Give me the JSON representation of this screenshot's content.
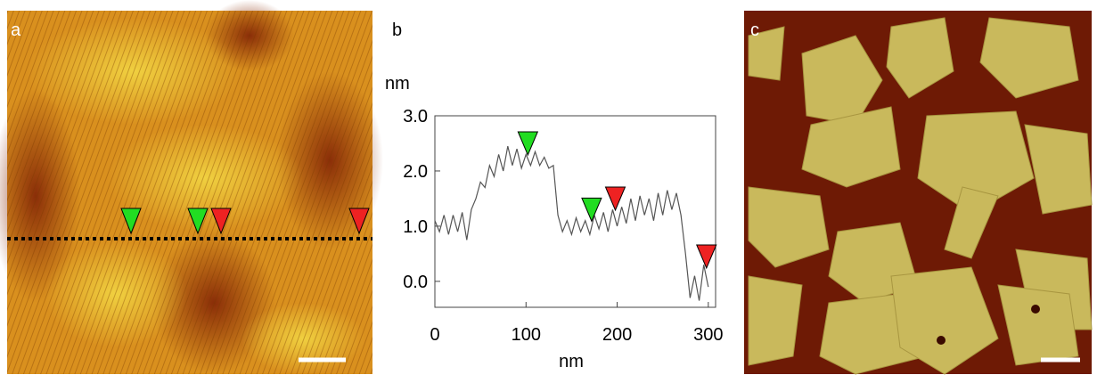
{
  "panels": {
    "a": {
      "label": "a"
    },
    "b": {
      "label": "b"
    },
    "c": {
      "label": "c"
    }
  },
  "chart_data": {
    "type": "line",
    "y_label": "nm",
    "x_label": "nm",
    "x": [
      0,
      5,
      10,
      15,
      20,
      25,
      30,
      35,
      40,
      45,
      50,
      55,
      60,
      65,
      70,
      75,
      80,
      85,
      90,
      95,
      100,
      105,
      110,
      115,
      120,
      125,
      130,
      135,
      140,
      145,
      150,
      155,
      160,
      165,
      170,
      175,
      180,
      185,
      190,
      195,
      200,
      205,
      210,
      215,
      220,
      225,
      230,
      235,
      240,
      245,
      250,
      255,
      260,
      265,
      270,
      275,
      280,
      285,
      290,
      295,
      300
    ],
    "series": [
      {
        "color": "#555555",
        "values": [
          1.1,
          0.9,
          1.2,
          0.85,
          1.2,
          0.9,
          1.25,
          0.75,
          1.3,
          1.5,
          1.8,
          1.7,
          2.1,
          1.9,
          2.3,
          2.0,
          2.45,
          2.1,
          2.4,
          2.05,
          2.3,
          2.1,
          2.35,
          2.1,
          2.25,
          2.05,
          2.1,
          1.2,
          0.9,
          1.1,
          0.85,
          1.15,
          0.9,
          1.1,
          0.85,
          1.2,
          0.95,
          1.25,
          0.9,
          1.3,
          1.0,
          1.35,
          1.05,
          1.5,
          1.1,
          1.55,
          1.2,
          1.5,
          1.1,
          1.6,
          1.2,
          1.65,
          1.3,
          1.6,
          1.2,
          0.5,
          -0.3,
          0.1,
          -0.35,
          0.3,
          -0.1
        ]
      }
    ],
    "markers": [
      {
        "x": 102,
        "y": 2.5,
        "color": "#22dd22"
      },
      {
        "x": 172,
        "y": 1.3,
        "color": "#22dd22"
      },
      {
        "x": 198,
        "y": 1.5,
        "color": "#ee2222"
      },
      {
        "x": 298,
        "y": 0.45,
        "color": "#ee2222"
      }
    ],
    "xlim": [
      0,
      308
    ],
    "ylim": [
      -0.47,
      3.0
    ],
    "xticks": [
      0,
      100,
      200,
      300
    ],
    "yticks": [
      {
        "value": 0,
        "label": "0.0"
      },
      {
        "value": 1,
        "label": "1.0"
      },
      {
        "value": 2,
        "label": "2.0"
      },
      {
        "value": 3,
        "label": "3.0"
      }
    ]
  }
}
